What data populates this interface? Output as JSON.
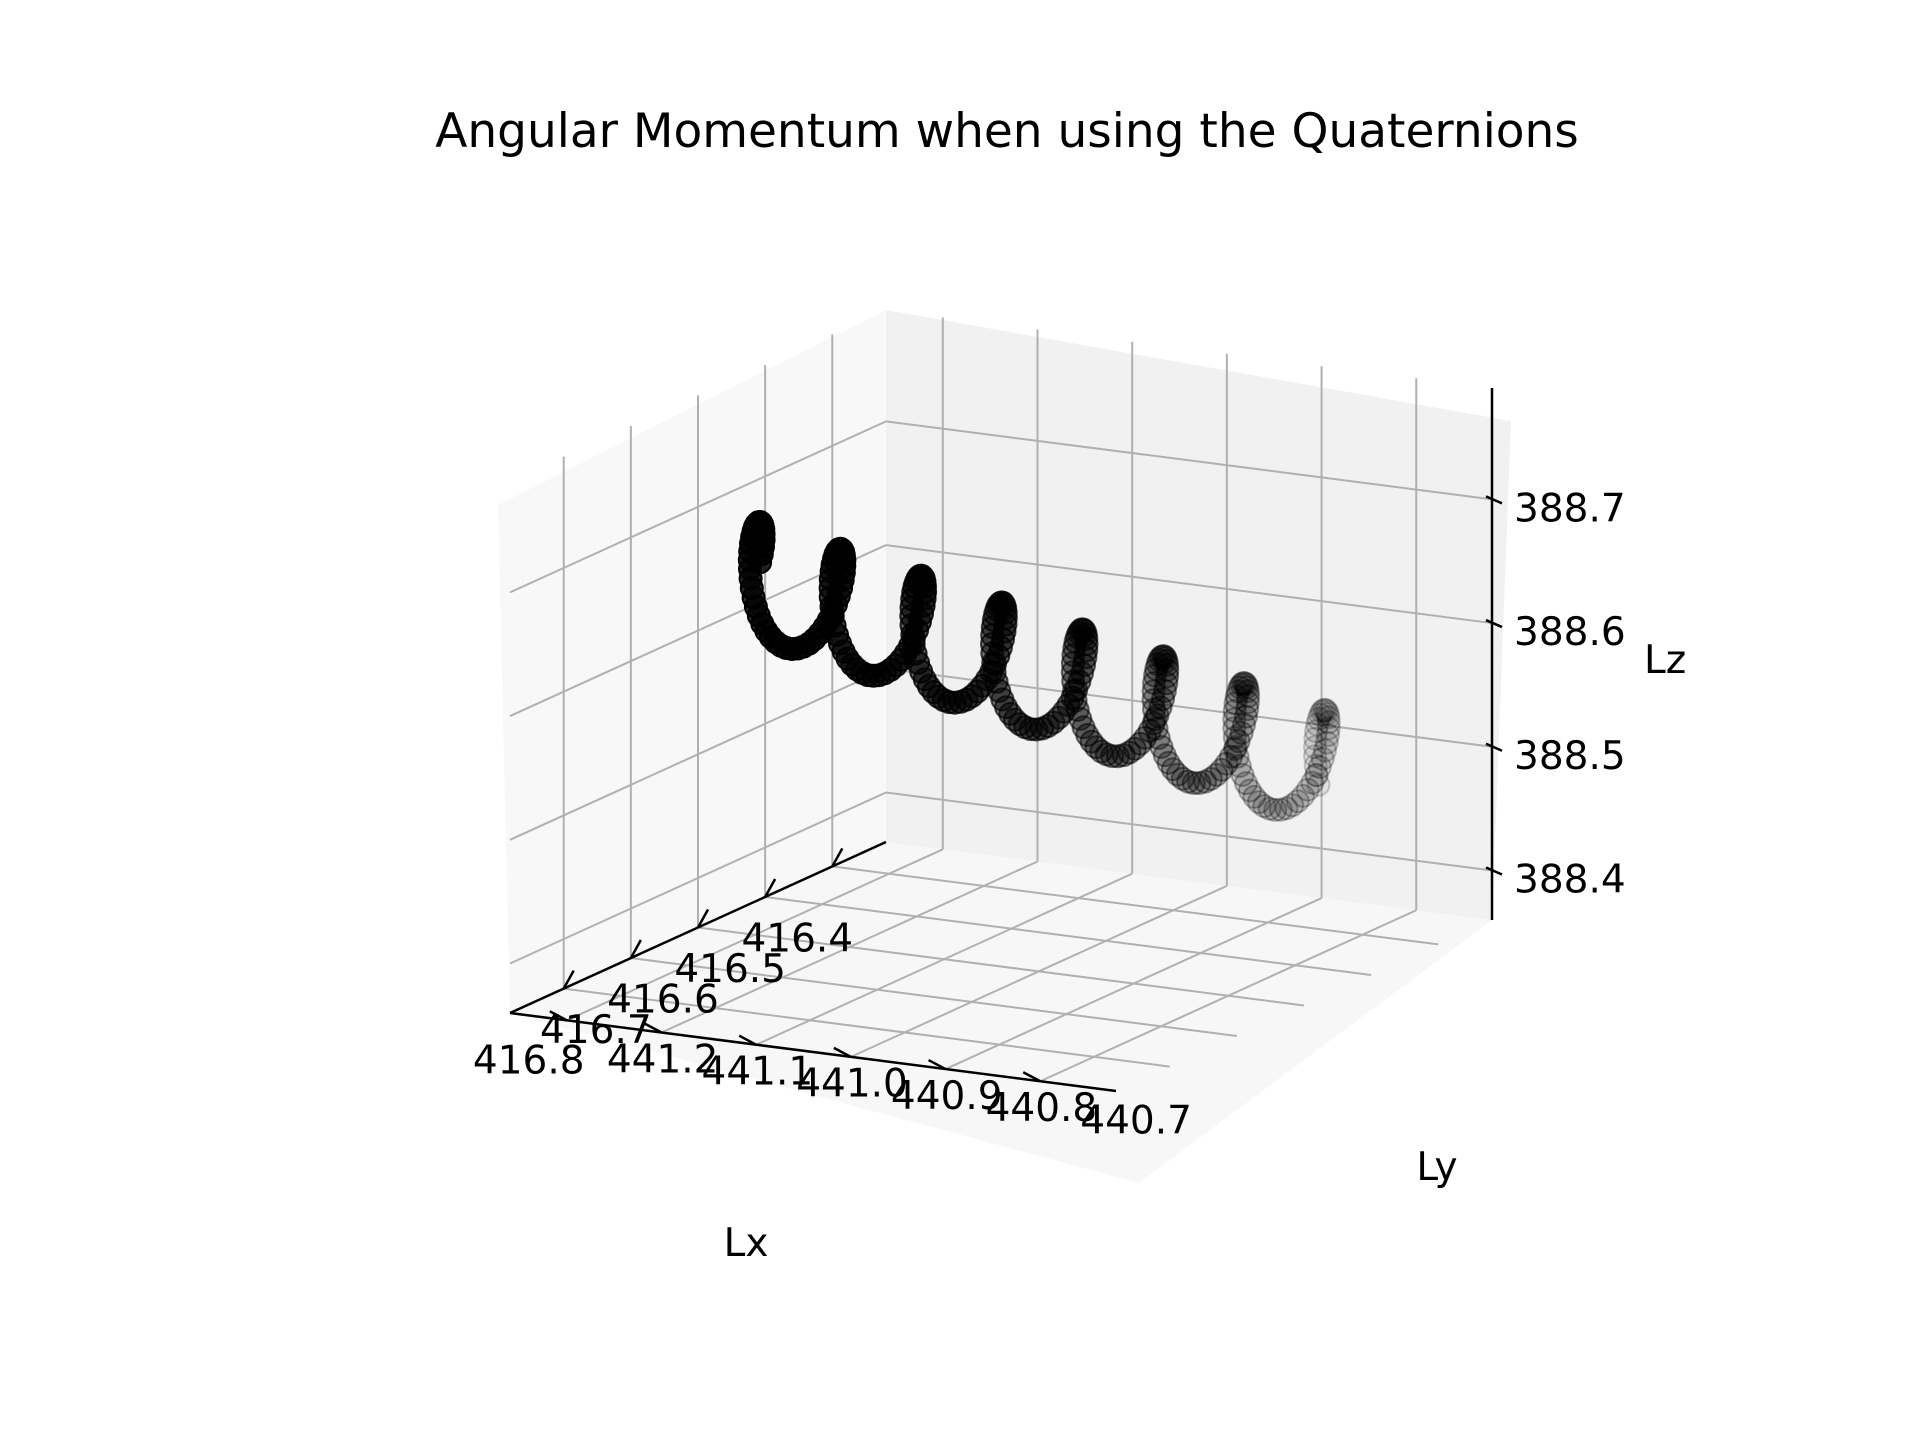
{
  "chart_data": {
    "type": "scatter",
    "projection": "3d",
    "title": "Angular Momentum when using the Quaternions",
    "xlabel": "Lx",
    "ylabel": "Ly",
    "zlabel": "Lz",
    "x_ticks": [
      "416.4",
      "416.5",
      "416.6",
      "416.7",
      "416.8"
    ],
    "y_ticks": [
      "440.7",
      "440.8",
      "440.9",
      "441.0",
      "441.1",
      "441.2"
    ],
    "z_ticks": [
      "388.4",
      "388.5",
      "388.6",
      "388.7"
    ],
    "xlim": [
      416.32,
      416.88
    ],
    "ylim": [
      440.62,
      441.26
    ],
    "zlim": [
      388.36,
      388.79
    ],
    "grid": true,
    "marker": "circle",
    "marker_color": "#000000",
    "depth_shading": true,
    "series": [
      {
        "n_points": 300,
        "x_range": [
          416.36,
          416.74
        ],
        "y_range": [
          440.75,
          441.12
        ],
        "z_range": [
          388.43,
          388.74
        ],
        "oscillation_cycles": 7.5
      }
    ]
  }
}
